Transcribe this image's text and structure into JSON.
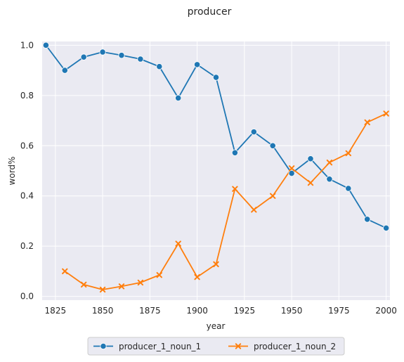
{
  "chart_data": {
    "type": "line",
    "title": "producer",
    "xlabel": "year",
    "ylabel": "word%",
    "xlim": [
      1818,
      2002
    ],
    "ylim": [
      -0.015,
      1.015
    ],
    "xticks": [
      1825,
      1850,
      1875,
      1900,
      1925,
      1950,
      1975,
      2000
    ],
    "yticks": [
      0.0,
      0.2,
      0.4,
      0.6,
      0.8,
      1.0
    ],
    "xtick_labels": [
      "1825",
      "1850",
      "1875",
      "1900",
      "1925",
      "1950",
      "1975",
      "2000"
    ],
    "ytick_labels": [
      "0.0",
      "0.2",
      "0.4",
      "0.6",
      "0.8",
      "1.0"
    ],
    "grid": true,
    "legend_position": "bottom-center",
    "series": [
      {
        "name": "producer_1_noun_1",
        "color": "#1f77b4",
        "marker": "circle",
        "x": [
          1820,
          1830,
          1840,
          1850,
          1860,
          1870,
          1880,
          1890,
          1900,
          1910,
          1920,
          1930,
          1940,
          1950,
          1960,
          1970,
          1980,
          1990,
          2000
        ],
        "y": [
          1.0,
          0.9,
          0.953,
          0.973,
          0.96,
          0.945,
          0.915,
          0.79,
          0.923,
          0.872,
          0.572,
          0.655,
          0.6,
          0.49,
          0.548,
          0.467,
          0.43,
          0.307,
          0.272
        ]
      },
      {
        "name": "producer_1_noun_2",
        "color": "#ff7f0e",
        "marker": "x",
        "x": [
          1830,
          1840,
          1850,
          1860,
          1870,
          1880,
          1890,
          1900,
          1910,
          1920,
          1930,
          1940,
          1950,
          1960,
          1970,
          1980,
          1990,
          2000
        ],
        "y": [
          0.1,
          0.047,
          0.027,
          0.04,
          0.055,
          0.085,
          0.21,
          0.077,
          0.128,
          0.428,
          0.345,
          0.4,
          0.51,
          0.452,
          0.533,
          0.57,
          0.693,
          0.728
        ]
      }
    ]
  }
}
